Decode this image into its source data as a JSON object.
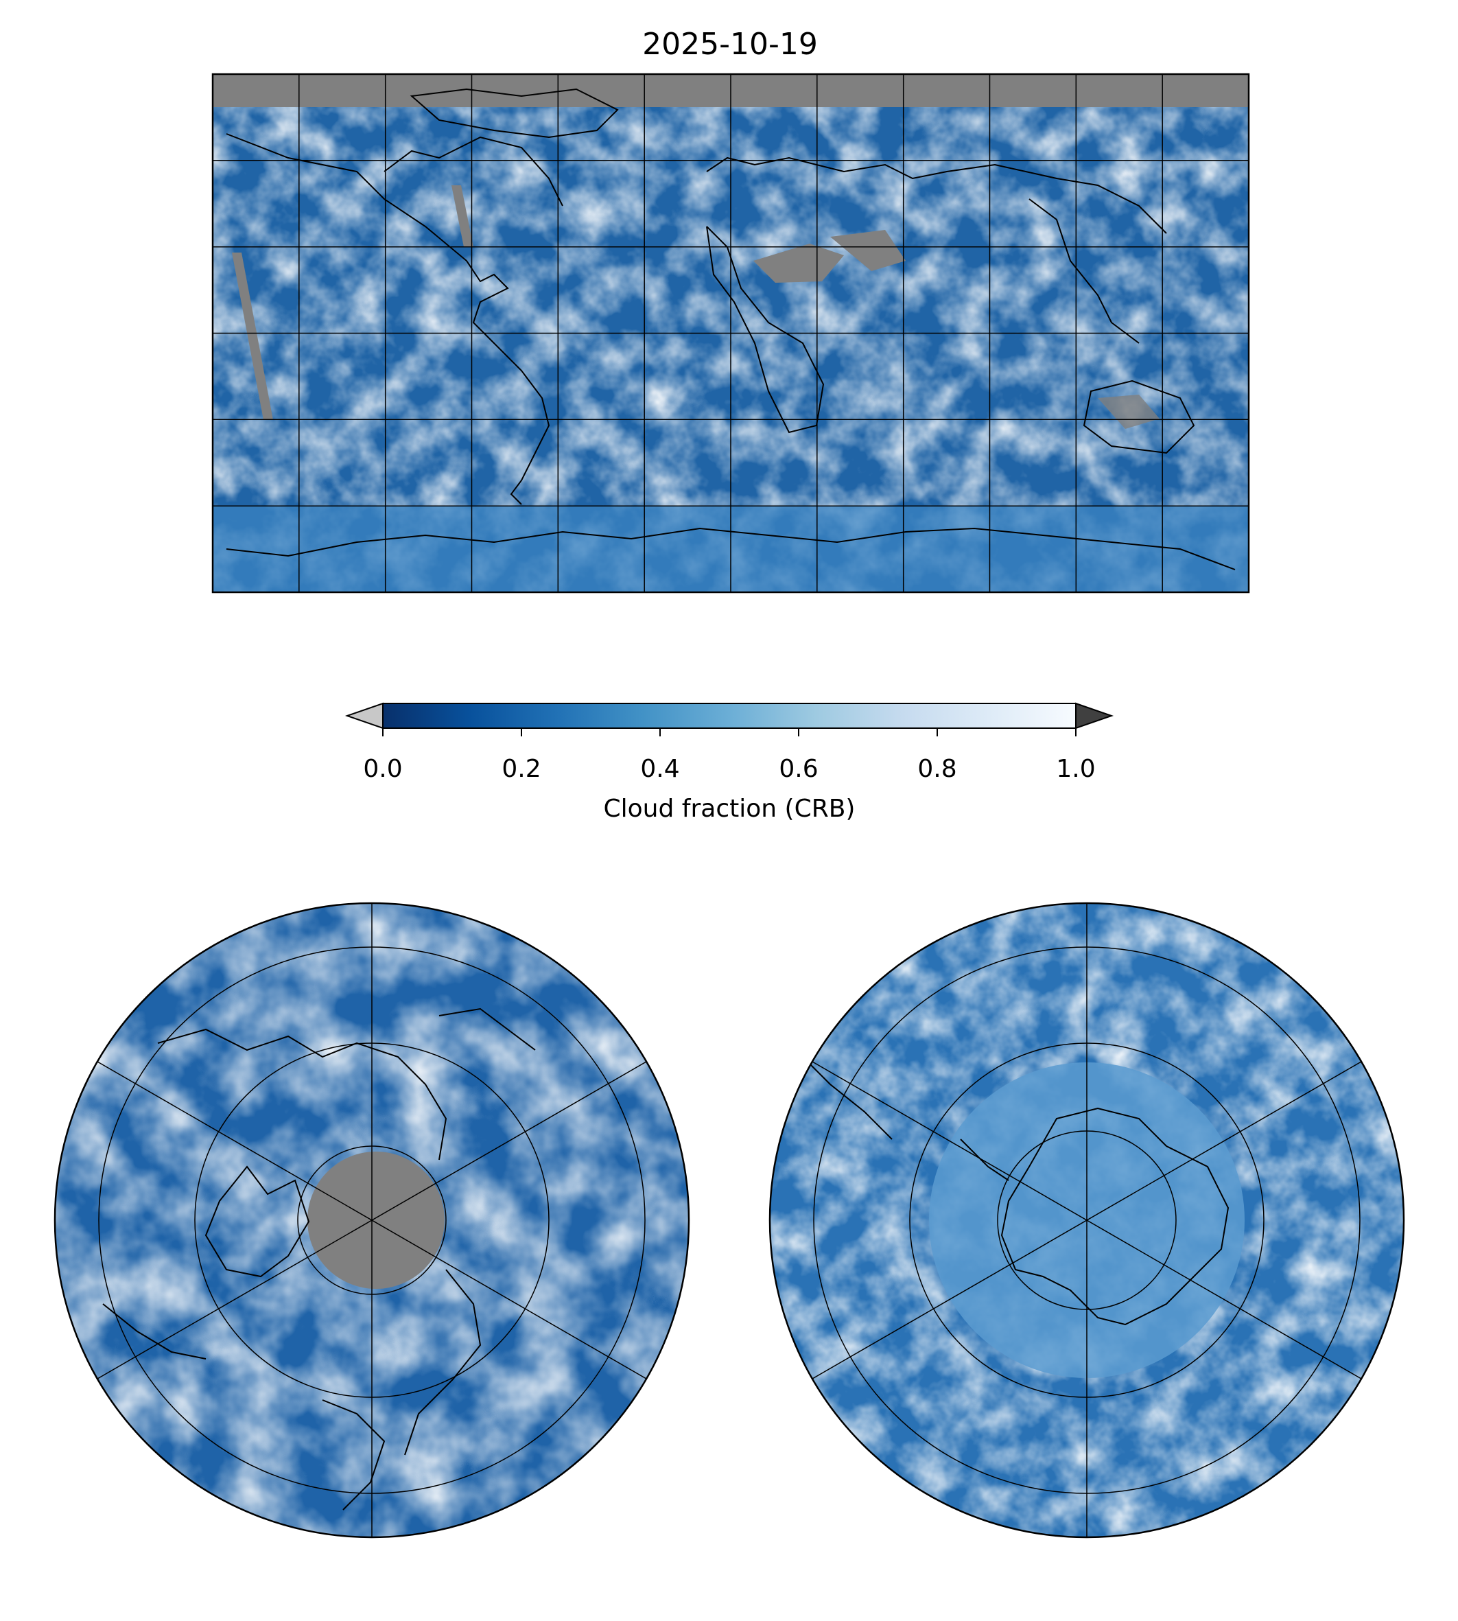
{
  "title": "2025-10-19",
  "colorbar": {
    "label": "Cloud fraction (CRB)",
    "ticks": [
      "0.0",
      "0.2",
      "0.4",
      "0.6",
      "0.8",
      "1.0"
    ],
    "tick_values": [
      0.0,
      0.2,
      0.4,
      0.6,
      0.8,
      1.0
    ],
    "range": [
      0.0,
      1.0
    ],
    "under_color": "#c8c8c8",
    "over_color": "#404040",
    "colormap": [
      "#08306b",
      "#08519c",
      "#2171b5",
      "#4292c6",
      "#6baed6",
      "#9ecae1",
      "#c6dbef",
      "#deebf7",
      "#f7fbff"
    ]
  },
  "missing_color": "#808080",
  "coastline_color": "#000000",
  "maps": [
    {
      "name": "global",
      "projection": "plate-carree",
      "gridlines": true
    },
    {
      "name": "north-pole",
      "projection": "north-polar-stereographic",
      "gridlines": true
    },
    {
      "name": "south-pole",
      "projection": "south-polar-stereographic",
      "gridlines": true
    }
  ]
}
